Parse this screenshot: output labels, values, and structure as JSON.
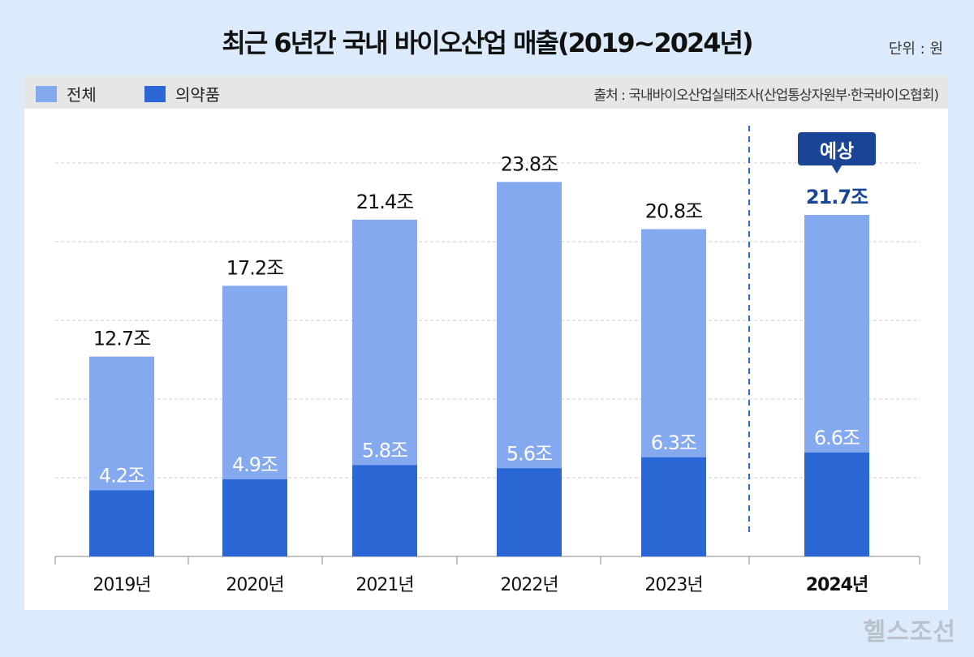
{
  "title": "최근 6년간 국내 바이오산업 매출(2019~2024년)",
  "unit": "단위 : 원",
  "source": "출처 : 국내바이오산업실태조사(산업통상자원부·한국바이오협회)",
  "brand": "헬스조선",
  "colors": {
    "total": "#85a9ee",
    "pharma": "#2a66d4",
    "forecast": "#1a4596",
    "grid": "#cccccc"
  },
  "chart_data": {
    "type": "bar",
    "stacked": "overlay",
    "categories": [
      "2019년",
      "2020년",
      "2021년",
      "2022년",
      "2023년",
      "2024년"
    ],
    "series": [
      {
        "name": "전체",
        "values": [
          12.7,
          17.2,
          21.4,
          23.8,
          20.8,
          21.7
        ],
        "labels": [
          "12.7조",
          "17.2조",
          "21.4조",
          "23.8조",
          "20.8조",
          "21.7조"
        ]
      },
      {
        "name": "의약품",
        "values": [
          4.2,
          4.9,
          5.8,
          5.6,
          6.3,
          6.6
        ],
        "labels": [
          "4.2조",
          "4.9조",
          "5.8조",
          "5.6조",
          "6.3조",
          "6.6조"
        ]
      }
    ],
    "ylim": [
      0,
      25
    ],
    "grid": true,
    "legend": "top-left",
    "annotation": {
      "category": "2024년",
      "text": "예상"
    }
  }
}
